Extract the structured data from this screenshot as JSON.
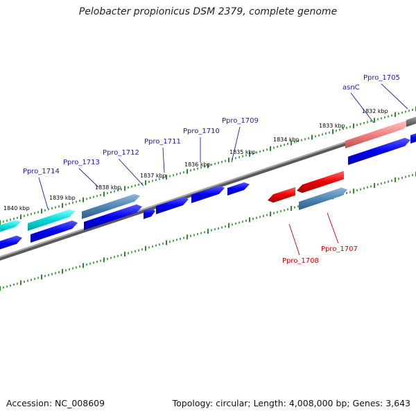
{
  "title": "Pelobacter propionicus DSM 2379, complete genome",
  "footer": {
    "accession": "Accession: NC_008609",
    "stats": "Topology: circular; Length: 4,008,000 bp; Genes: 3,643"
  },
  "colors": {
    "backbone": "#6f6f6f",
    "ticks": "#2d8a2d",
    "forward_label": "#1a1aa8",
    "reverse_label": "#cc0000",
    "cds": "#0000ee",
    "cyan": "#00d8d8",
    "steel": "#4f86b5",
    "red": "#ee0000",
    "salmon": "#f08080",
    "gray": "#7a7a7a"
  },
  "scale_labels": [
    "1840 kbp",
    "1839 kbp",
    "1838 kbp",
    "1837 kbp",
    "1836 kbp",
    "1835 kbp",
    "1834 kbp",
    "1833 kbp",
    "1832 kbp"
  ],
  "gene_labels": {
    "forward": [
      "Ppro_1714",
      "Ppro_1713",
      "Ppro_1712",
      "Ppro_1711",
      "Ppro_1710",
      "Ppro_1709",
      "asnC",
      "Ppro_1705"
    ],
    "reverse": [
      "Ppro_1708",
      "Ppro_1707"
    ]
  }
}
